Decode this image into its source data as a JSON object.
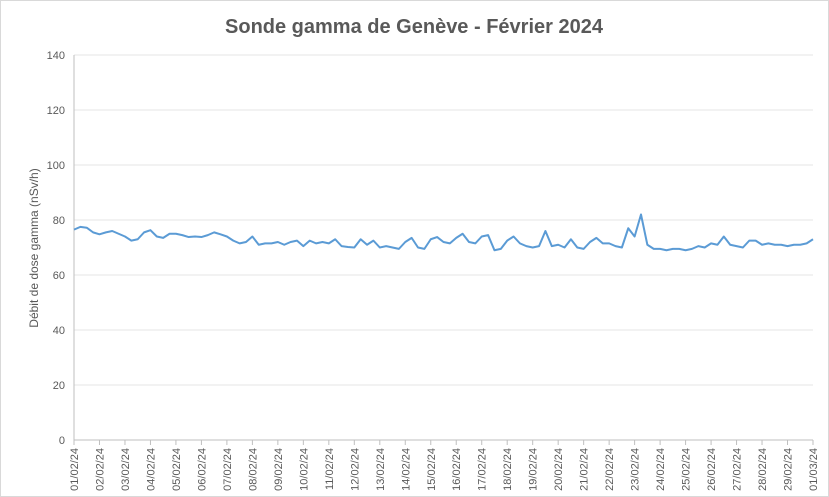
{
  "chart_data": {
    "type": "line",
    "title": "Sonde gamma de Genève - Février 2024",
    "y_label": "Débit de dose gamma (nSv/h)",
    "x": [
      0,
      0.25,
      0.5,
      0.75,
      1,
      1.25,
      1.5,
      1.75,
      2,
      2.25,
      2.5,
      2.75,
      3,
      3.25,
      3.5,
      3.75,
      4,
      4.25,
      4.5,
      4.75,
      5,
      5.25,
      5.5,
      5.75,
      6,
      6.25,
      6.5,
      6.75,
      7,
      7.25,
      7.5,
      7.75,
      8,
      8.25,
      8.5,
      8.75,
      9,
      9.25,
      9.5,
      9.75,
      10,
      10.25,
      10.5,
      10.75,
      11,
      11.25,
      11.5,
      11.75,
      12,
      12.25,
      12.5,
      12.75,
      13,
      13.25,
      13.5,
      13.75,
      14,
      14.25,
      14.5,
      14.75,
      15,
      15.25,
      15.5,
      15.75,
      16,
      16.25,
      16.5,
      16.75,
      17,
      17.25,
      17.5,
      17.75,
      18,
      18.25,
      18.5,
      18.75,
      19,
      19.25,
      19.5,
      19.75,
      20,
      20.25,
      20.5,
      20.75,
      21,
      21.25,
      21.5,
      21.75,
      22,
      22.25,
      22.5,
      22.75,
      23,
      23.25,
      23.5,
      23.75,
      24,
      24.25,
      24.5,
      24.75,
      25,
      25.25,
      25.5,
      25.75,
      26,
      26.25,
      26.5,
      26.75,
      27,
      27.25,
      27.5,
      27.75,
      28,
      28.25,
      28.5,
      28.75,
      29
    ],
    "series": [
      {
        "name": "Débit de dose gamma",
        "color": "#5b9bd5",
        "values": [
          76.5,
          77.5,
          77.2,
          75.5,
          74.8,
          75.5,
          76,
          75,
          74,
          72.5,
          73,
          75.5,
          76.3,
          74,
          73.5,
          75,
          75,
          74.5,
          73.8,
          74,
          73.8,
          74.5,
          75.5,
          74.8,
          74,
          72.5,
          71.5,
          72,
          74,
          71,
          71.5,
          71.5,
          72,
          71,
          72,
          72.5,
          70.5,
          72.5,
          71.5,
          72,
          71.5,
          73,
          70.5,
          70.2,
          70,
          73,
          71,
          72.5,
          70,
          70.5,
          70,
          69.5,
          72,
          73.5,
          70,
          69.5,
          73,
          73.8,
          72,
          71.5,
          73.5,
          75,
          72,
          71.5,
          74,
          74.5,
          69,
          69.5,
          72.5,
          74,
          71.5,
          70.5,
          70,
          70.5,
          76,
          70.5,
          71,
          70,
          73,
          70,
          69.5,
          72,
          73.5,
          71.5,
          71.5,
          70.5,
          70,
          77,
          74,
          82,
          71,
          69.5,
          69.5,
          69,
          69.5,
          69.5,
          69,
          69.5,
          70.5,
          70,
          71.5,
          71,
          74,
          71,
          70.5,
          70,
          72.5,
          72.5,
          71,
          71.5,
          71,
          71,
          70.5,
          71,
          71,
          71.5,
          73
        ]
      }
    ],
    "xlim": [
      0,
      29
    ],
    "xticks": [
      {
        "value": 0,
        "label": "01/02/24"
      },
      {
        "value": 1,
        "label": "02/02/24"
      },
      {
        "value": 2,
        "label": "03/02/24"
      },
      {
        "value": 3,
        "label": "04/02/24"
      },
      {
        "value": 4,
        "label": "05/02/24"
      },
      {
        "value": 5,
        "label": "06/02/24"
      },
      {
        "value": 6,
        "label": "07/02/24"
      },
      {
        "value": 7,
        "label": "08/02/24"
      },
      {
        "value": 8,
        "label": "09/02/24"
      },
      {
        "value": 9,
        "label": "10/02/24"
      },
      {
        "value": 10,
        "label": "11/02/24"
      },
      {
        "value": 11,
        "label": "12/02/24"
      },
      {
        "value": 12,
        "label": "13/02/24"
      },
      {
        "value": 13,
        "label": "14/02/24"
      },
      {
        "value": 14,
        "label": "15/02/24"
      },
      {
        "value": 15,
        "label": "16/02/24"
      },
      {
        "value": 16,
        "label": "17/02/24"
      },
      {
        "value": 17,
        "label": "18/02/24"
      },
      {
        "value": 18,
        "label": "19/02/24"
      },
      {
        "value": 19,
        "label": "20/02/24"
      },
      {
        "value": 20,
        "label": "21/02/24"
      },
      {
        "value": 21,
        "label": "22/02/24"
      },
      {
        "value": 22,
        "label": "23/02/24"
      },
      {
        "value": 23,
        "label": "24/02/24"
      },
      {
        "value": 24,
        "label": "25/02/24"
      },
      {
        "value": 25,
        "label": "26/02/24"
      },
      {
        "value": 26,
        "label": "27/02/24"
      },
      {
        "value": 27,
        "label": "28/02/24"
      },
      {
        "value": 28,
        "label": "29/02/24"
      },
      {
        "value": 29,
        "label": "01/03/24"
      }
    ],
    "ylim": [
      0,
      140
    ],
    "yticks": [
      0,
      20,
      40,
      60,
      80,
      100,
      120,
      140
    ],
    "grid": true
  }
}
